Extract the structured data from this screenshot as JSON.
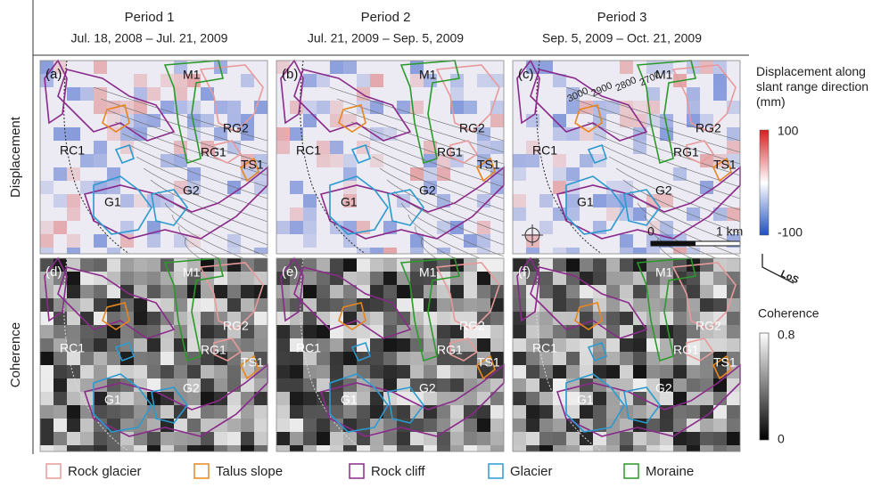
{
  "columns": [
    {
      "title": "Period 1",
      "dates": "Jul. 18, 2008 – Jul. 21, 2009"
    },
    {
      "title": "Period 2",
      "dates": "Jul. 21, 2009 – Sep. 5, 2009"
    },
    {
      "title": "Period 3",
      "dates": "Sep. 5, 2009 – Oct. 21, 2009"
    }
  ],
  "rows": [
    {
      "label": "Displacement",
      "panels": [
        "(a)",
        "(b)",
        "(c)"
      ]
    },
    {
      "label": "Coherence",
      "panels": [
        "(d)",
        "(e)",
        "(f)"
      ]
    }
  ],
  "features": [
    "M1",
    "RG2",
    "RG1",
    "TS1",
    "RC1",
    "G1",
    "G2"
  ],
  "contour_labels": [
    "3000",
    "2900",
    "2800",
    "2700"
  ],
  "scale_bar": {
    "start": "0",
    "end": "1 km"
  },
  "displacement_colorbar": {
    "title": "Displacement along slant range direction (mm)",
    "max": 100,
    "min": -100
  },
  "los": "LoS",
  "coherence_colorbar": {
    "title": "Coherence",
    "max": 0.8,
    "min": 0
  },
  "legend": [
    {
      "label": "Rock glacier",
      "color": "#e89a9a"
    },
    {
      "label": "Talus slope",
      "color": "#e8861e"
    },
    {
      "label": "Rock cliff",
      "color": "#8a2a8a"
    },
    {
      "label": "Glacier",
      "color": "#2a9ad0"
    },
    {
      "label": "Moraine",
      "color": "#2a9a2a"
    }
  ]
}
